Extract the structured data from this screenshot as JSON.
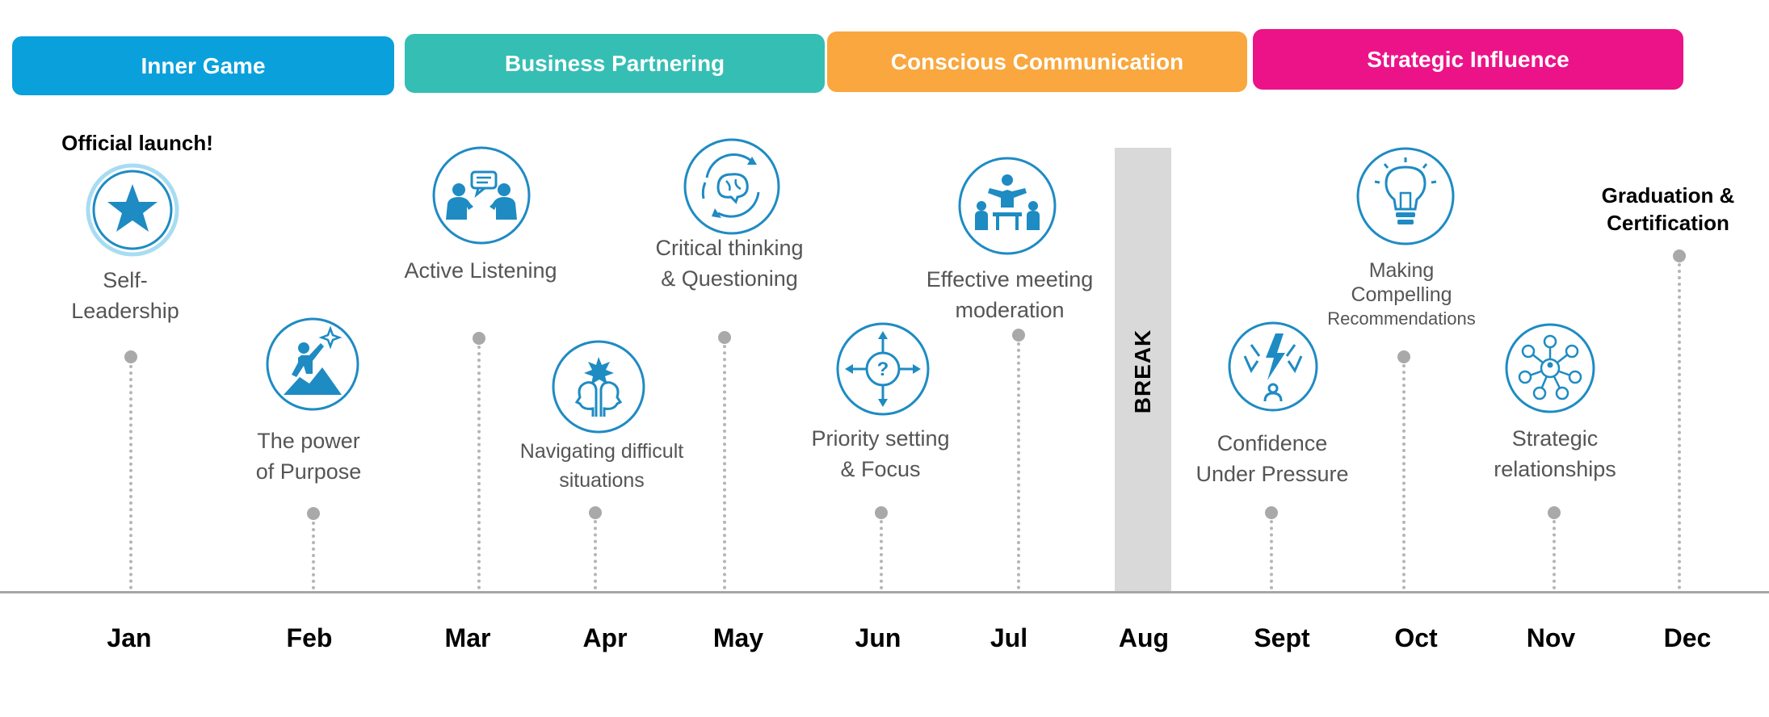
{
  "colors": {
    "inner_game": "#0AA0DC",
    "business_partnering": "#35BEB4",
    "conscious_communication": "#F9A73E",
    "strategic_influence": "#EC1388",
    "icon": "#1E8BC3",
    "break": "#D9D9D9"
  },
  "phases": [
    {
      "label": "Inner Game"
    },
    {
      "label": "Business Partnering"
    },
    {
      "label": "Conscious Communication"
    },
    {
      "label": "Strategic Influence"
    }
  ],
  "months": [
    "Jan",
    "Feb",
    "Mar",
    "Apr",
    "May",
    "Jun",
    "Jul",
    "Aug",
    "Sept",
    "Oct",
    "Nov",
    "Dec"
  ],
  "notes": {
    "launch": "Official launch!",
    "graduation": [
      "Graduation &",
      "Certification"
    ]
  },
  "break_label": "BREAK",
  "topics": [
    {
      "lines": [
        "Self-",
        "Leadership"
      ],
      "icon": "star-icon"
    },
    {
      "lines": [
        "The power",
        "of Purpose"
      ],
      "icon": "climber-icon"
    },
    {
      "lines": [
        "Active Listening"
      ],
      "icon": "conversation-icon"
    },
    {
      "lines": [
        "Navigating  difficult",
        "situations"
      ],
      "icon": "heads-clash-icon"
    },
    {
      "lines": [
        "Critical thinking",
        "& Questioning"
      ],
      "icon": "brain-cycle-icon"
    },
    {
      "lines": [
        "Priority setting",
        "& Focus"
      ],
      "icon": "compass-question-icon"
    },
    {
      "lines": [
        "Effective meeting",
        "moderation"
      ],
      "icon": "meeting-icon"
    },
    {
      "lines": [
        "Confidence",
        "Under Pressure"
      ],
      "icon": "pressure-icon"
    },
    {
      "lines": [
        "Making",
        "Compelling",
        "Recommendations"
      ],
      "icon": "lightbulb-icon"
    },
    {
      "lines": [
        "Strategic",
        "relationships"
      ],
      "icon": "network-icon"
    }
  ]
}
